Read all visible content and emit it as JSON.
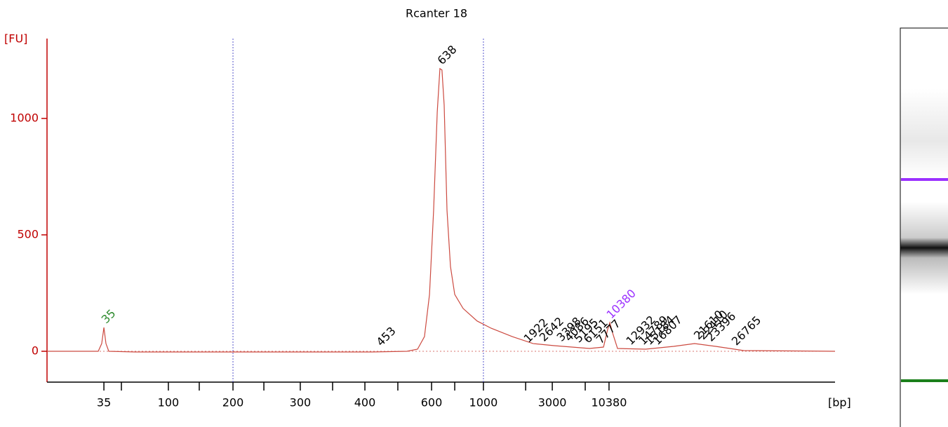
{
  "chart_data": {
    "type": "line",
    "title": "Rcanter 18",
    "y_label": "[FU]",
    "x_label": "[bp]",
    "xlim": [
      20,
      70
    ],
    "ylim": [
      -132.5,
      1343
    ],
    "xticks": [
      {
        "value": 23.61,
        "label": "35"
      },
      {
        "value": 24.72,
        "label": null
      },
      {
        "value": 27.7,
        "label": "100"
      },
      {
        "value": 29.66,
        "label": null
      },
      {
        "value": 31.8,
        "label": "200"
      },
      {
        "value": 33.76,
        "label": null
      },
      {
        "value": 36.07,
        "label": "300"
      },
      {
        "value": 38.12,
        "label": null
      },
      {
        "value": 40.17,
        "label": "400"
      },
      {
        "value": 42.26,
        "label": null
      },
      {
        "value": 44.4,
        "label": "600"
      },
      {
        "value": 45.87,
        "label": null
      },
      {
        "value": 47.69,
        "label": "1000"
      },
      {
        "value": 50.37,
        "label": null
      },
      {
        "value": 52.06,
        "label": "3000"
      },
      {
        "value": 54.15,
        "label": null
      },
      {
        "value": 55.66,
        "label": "10380"
      }
    ],
    "yticks": [
      0,
      500,
      1000
    ],
    "x": [
      20,
      23.25,
      23.47,
      23.61,
      23.74,
      23.92,
      25.61,
      40.61,
      42.84,
      43.51,
      43.95,
      44.27,
      44.53,
      44.76,
      44.93,
      45.06,
      45.2,
      45.38,
      45.6,
      45.87,
      46.4,
      47.29,
      48.18,
      49.52,
      50.85,
      52.19,
      54.42,
      55.31,
      55.57,
      55.71,
      55.89,
      56.2,
      57.98,
      59.76,
      61.09,
      62.43,
      64.21,
      70
    ],
    "series": [
      {
        "color": "#cc4a40",
        "values": [
          0,
          0,
          33,
          102,
          33,
          0,
          -3,
          -3,
          0,
          9,
          63,
          244,
          605,
          1027,
          1214,
          1208,
          1057,
          605,
          364,
          244,
          184,
          130,
          99,
          63,
          33,
          24,
          12,
          18,
          93,
          123,
          78,
          12,
          9,
          21,
          33,
          21,
          3,
          0
        ]
      }
    ],
    "annotations": [
      {
        "label": "35",
        "x": 23.61,
        "y": 102,
        "color": "#2e8b2e"
      },
      {
        "label": "638",
        "x": 44.93,
        "y": 1214,
        "color": "#000000"
      },
      {
        "label": "453",
        "x": 41.06,
        "y": 5,
        "color": "#000000"
      },
      {
        "label": "1922",
        "x": 50.41,
        "y": 20,
        "color": "#000000"
      },
      {
        "label": "2642",
        "x": 51.4,
        "y": 25,
        "color": "#000000"
      },
      {
        "label": "3398",
        "x": 52.5,
        "y": 25,
        "color": "#000000"
      },
      {
        "label": "4086",
        "x": 53.0,
        "y": 25,
        "color": "#000000"
      },
      {
        "label": "5195",
        "x": 53.6,
        "y": 20,
        "color": "#000000"
      },
      {
        "label": "6151",
        "x": 54.2,
        "y": 18,
        "color": "#000000"
      },
      {
        "label": "7777",
        "x": 55.0,
        "y": 15,
        "color": "#000000"
      },
      {
        "label": "10380",
        "x": 55.66,
        "y": 123,
        "color": "#9b30ff"
      },
      {
        "label": "12932",
        "x": 56.9,
        "y": 10,
        "color": "#000000"
      },
      {
        "label": "14789",
        "x": 57.7,
        "y": 10,
        "color": "#000000"
      },
      {
        "label": "15184",
        "x": 58.1,
        "y": 10,
        "color": "#000000"
      },
      {
        "label": "16807",
        "x": 58.6,
        "y": 10,
        "color": "#000000"
      },
      {
        "label": "21610",
        "x": 61.2,
        "y": 33,
        "color": "#000000"
      },
      {
        "label": "22410",
        "x": 61.5,
        "y": 33,
        "color": "#000000"
      },
      {
        "label": "23396",
        "x": 62.0,
        "y": 25,
        "color": "#000000"
      },
      {
        "label": "26765",
        "x": 63.6,
        "y": 8,
        "color": "#000000"
      }
    ]
  }
}
